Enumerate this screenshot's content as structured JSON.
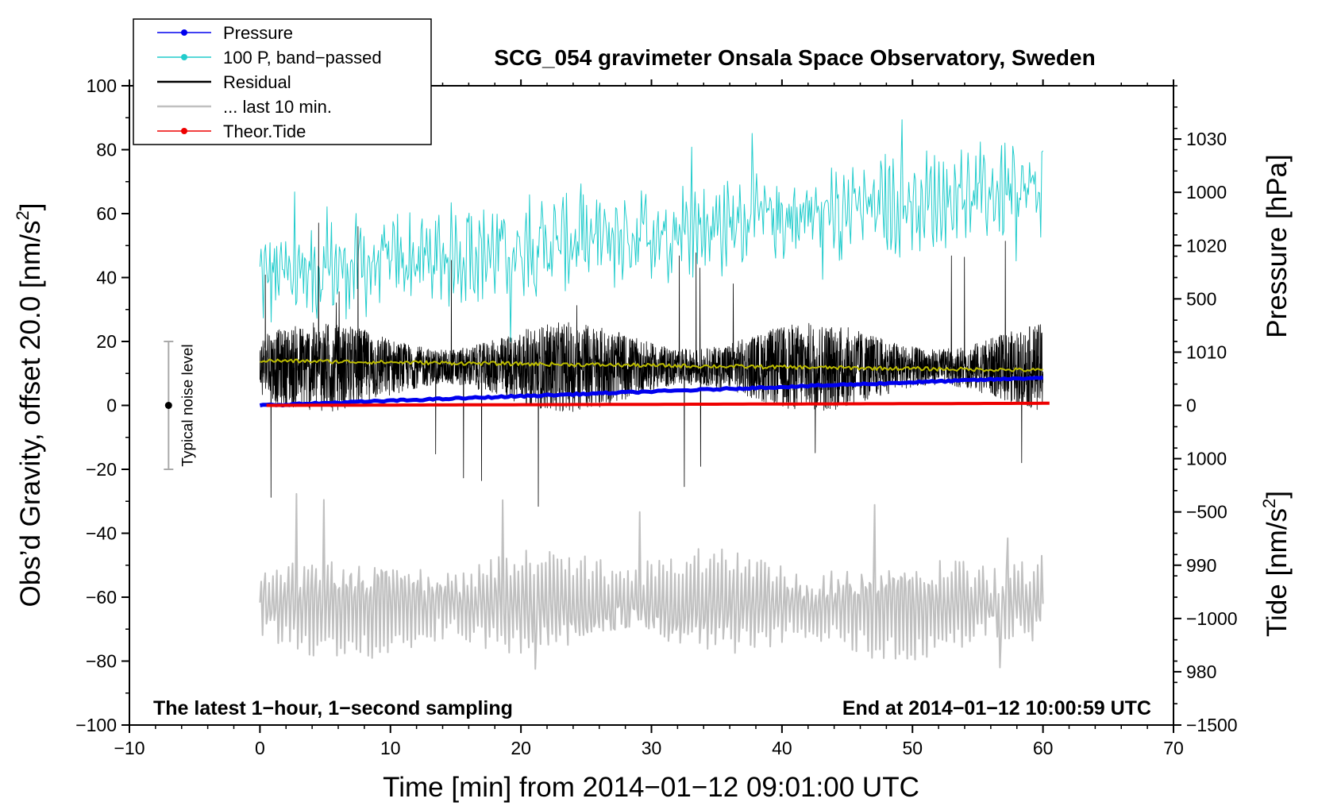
{
  "chart_data": {
    "type": "line",
    "title": "SCG_054 gravimeter Onsala Space Observatory, Sweden",
    "xlabel": "Time [min] from 2014−01−12 09:01:00 UTC",
    "ylabel_main": "Obs’d Gravity, offset 20.0 [nm/s",
    "ylabel_main_sup": "2",
    "ylabel_main_end": "]",
    "ylabel_pressure": "Pressure [hPa]",
    "ylabel_tide": "Tide [nm/s",
    "ylabel_tide_sup": "2",
    "ylabel_tide_end": "]",
    "xlim": [
      -10,
      70
    ],
    "ylim": [
      -100,
      100
    ],
    "pressure_lim": [
      975,
      1035
    ],
    "tide_lim": [
      -1500,
      1500
    ],
    "x_ticks": [
      -10,
      0,
      10,
      20,
      30,
      40,
      50,
      60,
      70
    ],
    "x_tick_labels": [
      "−10",
      "0",
      "10",
      "20",
      "30",
      "40",
      "50",
      "60",
      "70"
    ],
    "y_ticks": [
      -100,
      -80,
      -60,
      -40,
      -20,
      0,
      20,
      40,
      60,
      80,
      100
    ],
    "y_tick_labels": [
      "−100",
      "−80",
      "−60",
      "−40",
      "−20",
      "0",
      "20",
      "40",
      "60",
      "80",
      "100"
    ],
    "pressure_ticks": [
      980,
      990,
      1000,
      1010,
      1020,
      1030
    ],
    "pressure_tick_labels": [
      "980",
      "990",
      "1000",
      "1010",
      "1020",
      "1030"
    ],
    "tide_ticks": [
      -1500,
      -1000,
      -500,
      0,
      500,
      1000
    ],
    "tide_tick_labels": [
      "−1500",
      "−1000",
      "−500",
      "0",
      "500",
      "1000"
    ],
    "legend": [
      {
        "label": "Pressure",
        "color": "#0000ee",
        "marker": true
      },
      {
        "label": "100 P, band−passed",
        "color": "#22cccc",
        "marker": true
      },
      {
        "label": "Residual",
        "color": "#000000",
        "marker": false
      },
      {
        "label": "... last 10 min.",
        "color": "#c0c0c0",
        "marker": false
      },
      {
        "label": "Theor.Tide",
        "color": "#ee0000",
        "marker": true
      }
    ],
    "series": [
      {
        "name": "Pressure",
        "color": "#0000ee",
        "axis": "pressure",
        "x_range": [
          0,
          60
        ],
        "start": 1005.0,
        "end": 1007.6
      },
      {
        "name": "100 P, band−passed",
        "color": "#22cccc",
        "axis": "main",
        "x_range": [
          0,
          60
        ],
        "baseline_start": 40,
        "baseline_end": 68,
        "amplitude": 10
      },
      {
        "name": "Residual",
        "color": "#000000",
        "axis": "main",
        "x_range": [
          0,
          60
        ],
        "baseline": 12,
        "amplitude": 14
      },
      {
        "name": "Running mean",
        "color": "#bbbb00",
        "axis": "main",
        "x_range": [
          0,
          60
        ],
        "start": 14,
        "end": 11
      },
      {
        "name": "... last 10 min.",
        "color": "#c0c0c0",
        "axis": "main",
        "x_range": [
          0,
          60
        ],
        "baseline": -62,
        "amplitude": 14
      },
      {
        "name": "Theor.Tide",
        "color": "#ee0000",
        "axis": "tide",
        "x_range": [
          0.5,
          60.5
        ],
        "start": 0,
        "end": 10
      }
    ],
    "noise_level": {
      "x": -7,
      "center": 0,
      "low": -20,
      "high": 20,
      "label": "Typical noise level"
    },
    "annotation_left": "The latest 1−hour, 1−second sampling",
    "annotation_right": "End at 2014−01−12 10:00:59 UTC"
  }
}
